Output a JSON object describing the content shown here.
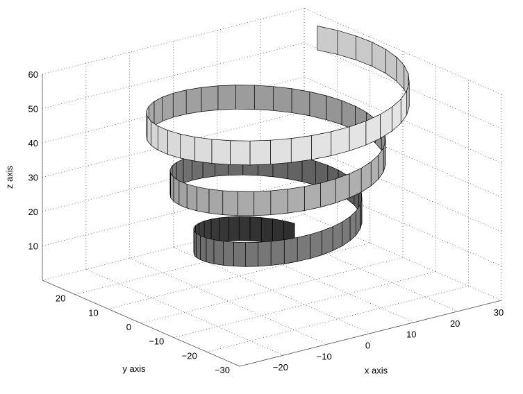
{
  "chart_data": {
    "type": "surface",
    "title": "",
    "xlabel": "x axis",
    "ylabel": "y axis",
    "zlabel": "z axis",
    "xlim": [
      -30,
      30
    ],
    "ylim": [
      -30,
      30
    ],
    "zlim": [
      0,
      60
    ],
    "x_ticks": [
      -20,
      -10,
      0,
      10,
      20,
      30
    ],
    "y_ticks": [
      -30,
      -20,
      -10,
      0,
      10,
      20
    ],
    "z_ticks": [
      10,
      20,
      30,
      40,
      50,
      60
    ],
    "grid": true,
    "colormap": "gray",
    "surface": {
      "description_free": true,
      "shape": "helical ribbon",
      "param_t_range": [
        0,
        18.85
      ],
      "radius_start": 13,
      "radius_end": 26,
      "z_start": 6,
      "z_end": 57,
      "ribbon_height": 7,
      "samples_per_turn": 40,
      "turns": 3
    }
  }
}
